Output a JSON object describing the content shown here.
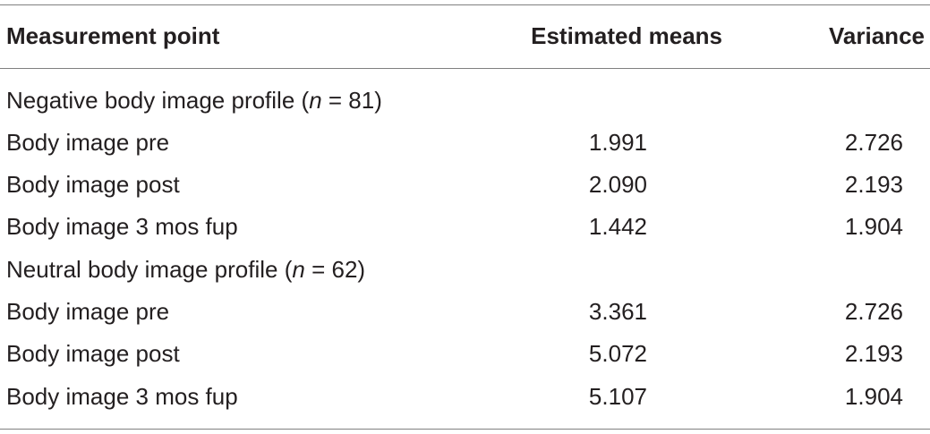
{
  "table": {
    "headers": {
      "measurement_point": "Measurement point",
      "estimated_means": "Estimated means",
      "variance": "Variance"
    },
    "groups": [
      {
        "label_prefix": "Negative body image profile (",
        "label_n": "n",
        "label_suffix": " = 81)",
        "rows": [
          {
            "point": "Body image pre",
            "mean": "1.991",
            "variance": "2.726"
          },
          {
            "point": "Body image post",
            "mean": "2.090",
            "variance": "2.193"
          },
          {
            "point": "Body image 3 mos fup",
            "mean": "1.442",
            "variance": "1.904"
          }
        ]
      },
      {
        "label_prefix": "Neutral body image profile (",
        "label_n": "n",
        "label_suffix": " = 62)",
        "rows": [
          {
            "point": "Body image pre",
            "mean": "3.361",
            "variance": "2.726"
          },
          {
            "point": "Body image post",
            "mean": "5.072",
            "variance": "2.193"
          },
          {
            "point": "Body image 3 mos fup",
            "mean": "5.107",
            "variance": "1.904"
          }
        ]
      }
    ]
  }
}
